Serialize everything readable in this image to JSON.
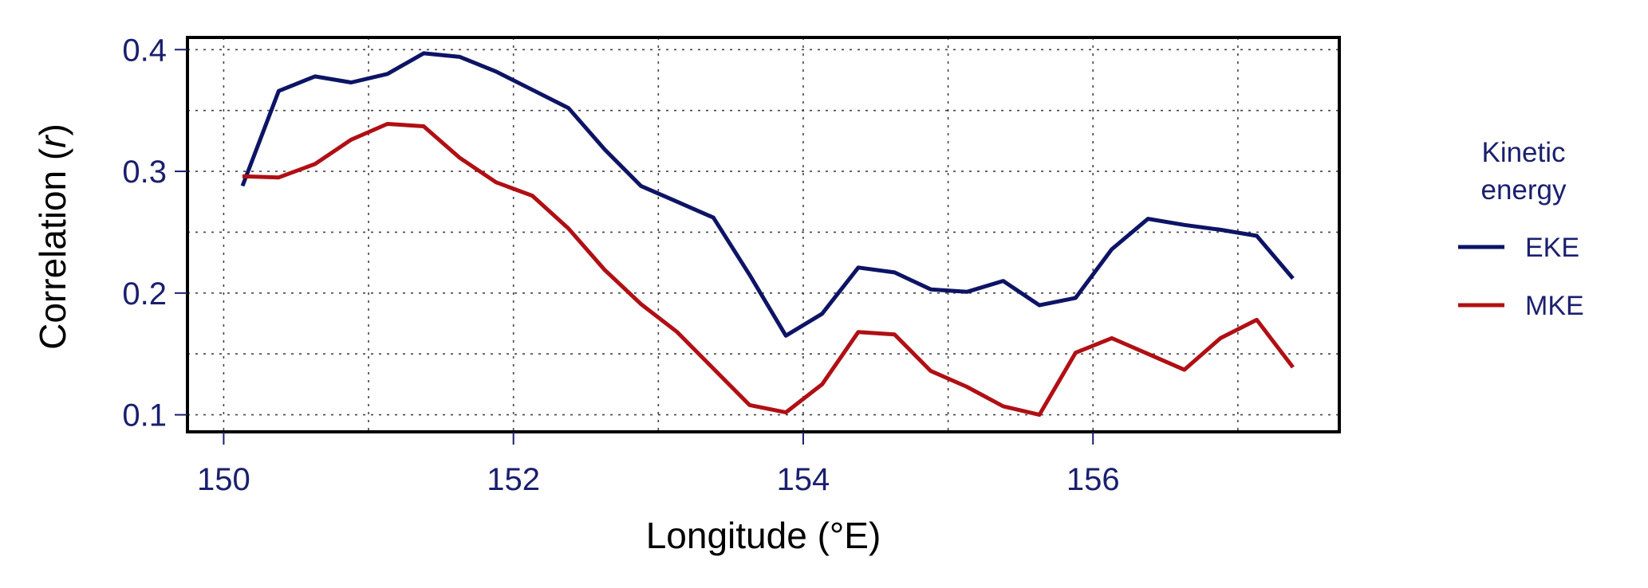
{
  "chart_data": {
    "type": "line",
    "title": "",
    "xlabel": "Longitude (°E)",
    "ylabel_prefix": "Correlation (",
    "ylabel_var": "r",
    "ylabel_suffix": ")",
    "xlim": [
      149.75,
      157.7
    ],
    "ylim": [
      0.086,
      0.41
    ],
    "xticks": [
      150,
      152,
      154,
      156
    ],
    "xtick_labels": [
      "150",
      "152",
      "154",
      "156"
    ],
    "yticks": [
      0.1,
      0.2,
      0.3,
      0.4
    ],
    "ytick_labels": [
      "0.1",
      "0.2",
      "0.3",
      "0.4"
    ],
    "grid": true,
    "legend": {
      "title_line1": "Kinetic",
      "title_line2": "energy",
      "placement": "right"
    },
    "x": [
      150.13,
      150.38,
      150.63,
      150.88,
      151.13,
      151.38,
      151.63,
      151.88,
      152.13,
      152.38,
      152.63,
      152.88,
      153.13,
      153.38,
      153.63,
      153.88,
      154.13,
      154.38,
      154.63,
      154.88,
      155.13,
      155.38,
      155.63,
      155.88,
      156.13,
      156.38,
      156.63,
      156.88,
      157.13,
      157.38
    ],
    "series": [
      {
        "name": "EKE",
        "color": "#0d1465",
        "values": [
          0.288,
          0.366,
          0.378,
          0.373,
          0.38,
          0.397,
          0.394,
          0.382,
          0.367,
          0.352,
          0.318,
          0.288,
          0.275,
          0.262,
          0.215,
          0.165,
          0.183,
          0.221,
          0.217,
          0.203,
          0.201,
          0.21,
          0.19,
          0.196,
          0.236,
          0.261,
          0.256,
          0.252,
          0.247,
          0.212
        ]
      },
      {
        "name": "MKE",
        "color": "#b00f14",
        "values": [
          0.296,
          0.295,
          0.306,
          0.326,
          0.339,
          0.337,
          0.311,
          0.291,
          0.28,
          0.253,
          0.219,
          0.191,
          0.168,
          0.138,
          0.108,
          0.102,
          0.125,
          0.168,
          0.166,
          0.136,
          0.123,
          0.107,
          0.1,
          0.151,
          0.163,
          0.15,
          0.137,
          0.163,
          0.178,
          0.139
        ]
      }
    ]
  }
}
